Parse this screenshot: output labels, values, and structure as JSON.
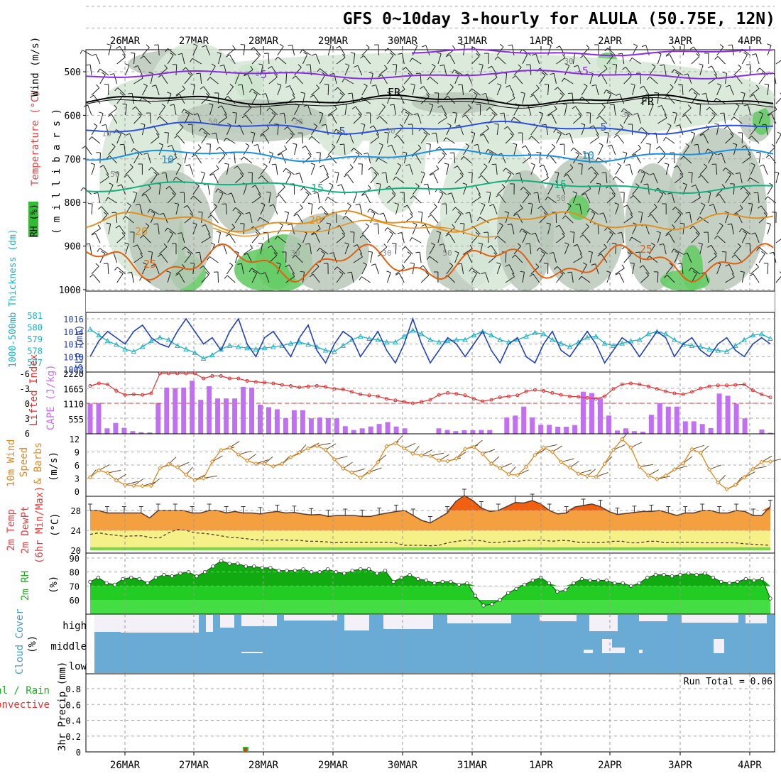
{
  "title": "GFS 0~10day 3-hourly for ALULA (50.75E, 12N)",
  "date_labels": [
    "26MAR",
    "27MAR",
    "28MAR",
    "29MAR",
    "30MAR",
    "31MAR",
    "1APR",
    "2APR",
    "3APR",
    "4APR"
  ],
  "colors": {
    "temp_minus5": "#8a2be2",
    "temp_freezing": "#000000",
    "temp_5": "#2a50e0",
    "temp_10": "#1a90e0",
    "temp_15": "#10b080",
    "temp_20": "#e09020",
    "temp_25": "#e06010",
    "slp": "#2040c0",
    "thickness": "#20b0c0",
    "lifted_index": "#e03030",
    "cape": "#c070f0",
    "wind_speed": "#e08820",
    "temp_fill": "#f4a040",
    "temp_warm_fill": "#f06010",
    "dewpoint_fill": "#f6f088",
    "rh_fill": "#22cc22",
    "cloud": "#6aabd6",
    "cloud_gap": "#f4f0f8",
    "precip_total": "#22cc22",
    "precip_convective": "#e03030"
  },
  "panels": {
    "upper": {
      "left_labels": {
        "rh": "RH (%)",
        "temperature": "Temperature (°C)",
        "wind": "Wind (m/s)",
        "units": "( m i l l i b a r s )"
      },
      "y_ticks": [
        "500",
        "600",
        "700",
        "800",
        "900",
        "1000"
      ],
      "contour_labels": [
        "-5",
        "-5",
        "FR",
        "FR",
        "5",
        "5",
        "10",
        "10",
        "15",
        "15",
        "20",
        "20",
        "25",
        "25",
        "10",
        "30",
        "50",
        "30",
        "30",
        "50",
        "50",
        "50",
        "30",
        "30",
        "30"
      ]
    },
    "slp": {
      "left_labels": {
        "thickness": "1000-500mb Thickness (dm)",
        "slp": "SLP (mb)"
      },
      "thick_ticks": [
        "581",
        "580",
        "579",
        "578",
        "577"
      ],
      "slp_ticks": [
        "1016",
        "1014",
        "1012",
        "1010",
        "1008"
      ]
    },
    "cape": {
      "left_labels": {
        "li": "Lifted Index",
        "cape": "CAPE (J/kg)"
      },
      "li_ticks": [
        "-6",
        "-3",
        "0",
        "3",
        "6"
      ],
      "cape_ticks": [
        "2220",
        "1665",
        "1110",
        "555"
      ]
    },
    "wind10": {
      "left_labels": {
        "a": "10m Wind",
        "b": "Speed",
        "c": "& Barbs",
        "d": "(m/s)"
      },
      "ticks": [
        "12",
        "9",
        "6",
        "3",
        "0"
      ]
    },
    "temp2m": {
      "left_labels": {
        "a": "2m Temp",
        "b": "2m DewPt",
        "c": "(6hr Min/Max)",
        "d": "(°C)"
      },
      "ticks": [
        "28",
        "24",
        "20"
      ]
    },
    "rh2m": {
      "left_labels": {
        "a": "2m RH",
        "b": "(%)"
      },
      "ticks": [
        "90",
        "80",
        "70",
        "60"
      ]
    },
    "cloud": {
      "left_labels": {
        "a": "Cloud Cover",
        "b": "(%)"
      },
      "ticks": [
        "high",
        "middle",
        "low"
      ]
    },
    "precip": {
      "left_labels": {
        "a": "Total / Rain",
        "b": "Convective",
        "c": "3hr Precip (mm)"
      },
      "ticks": [
        "0.8",
        "0.6",
        "0.4",
        "0.2",
        "0"
      ],
      "run_total": "Run Total = 0.06"
    }
  },
  "chart_data": [
    {
      "type": "line",
      "name": "1000-500mb thickness & SLP",
      "x_step_hours": 3,
      "series": [
        {
          "name": "SLP (mb)",
          "values": [
            1010,
            1012.5,
            1014,
            1013,
            1012,
            1014,
            1015,
            1013,
            1012,
            1011.5,
            1014,
            1016,
            1014,
            1012,
            1013,
            1011,
            1014,
            1016,
            1012,
            1010,
            1013,
            1014,
            1012,
            1010,
            1013,
            1015,
            1011,
            1009,
            1012,
            1014,
            1013,
            1010,
            1012,
            1014,
            1011,
            1009,
            1012,
            1016,
            1012,
            1009,
            1011,
            1013,
            1012,
            1010,
            1012,
            1014,
            1011,
            1009,
            1012,
            1013,
            1010,
            1009,
            1012,
            1014,
            1011,
            1010,
            1012,
            1014,
            1012,
            1009,
            1011,
            1013,
            1012,
            1010,
            1012,
            1014,
            1013,
            1010,
            1012,
            1013,
            1011,
            1010,
            1012,
            1013,
            1011,
            1010,
            1012,
            1013,
            1012
          ]
        },
        {
          "name": "Thickness (dm)",
          "values": [
            579.8,
            579.3,
            578.8,
            578.5,
            578.1,
            577.9,
            578.3,
            578.8,
            579.1,
            578.9,
            578.4,
            578.1,
            577.8,
            577.3,
            577.6,
            578.1,
            578.4,
            578.3,
            578.2,
            578.1,
            578.2,
            578.3,
            578.4,
            578.6,
            578.7,
            578.5,
            578.3,
            578.0,
            577.9,
            578.4,
            578.9,
            579.2,
            579.0,
            578.9,
            578.7,
            578.7,
            579.2,
            579.7,
            579.4,
            578.9,
            578.7,
            578.8,
            578.9,
            578.9,
            579.3,
            579.6,
            579.3,
            578.9,
            578.7,
            578.9,
            579.2,
            579.5,
            579.4,
            578.9,
            578.6,
            578.3,
            578.7,
            579.1,
            579.2,
            578.6,
            578.4,
            578.6,
            578.8,
            578.9,
            579.4,
            579.6,
            579.4,
            578.9,
            578.5,
            578.4,
            578.3,
            578.1,
            578.0,
            577.9,
            578.4,
            578.9,
            579.3,
            579.4,
            579.0
          ]
        }
      ]
    },
    {
      "type": "bar",
      "name": "CAPE (J/kg)",
      "values": [
        1110,
        1110,
        200,
        400,
        220,
        100,
        60,
        50,
        1110,
        1700,
        1680,
        1700,
        1950,
        1250,
        1750,
        1300,
        1300,
        1300,
        1730,
        1700,
        1070,
        980,
        900,
        580,
        870,
        870,
        570,
        600,
        580,
        570,
        280,
        140,
        200,
        270,
        360,
        430,
        270,
        200,
        0,
        0,
        0,
        200,
        140,
        100,
        130,
        130,
        140,
        140,
        0,
        600,
        670,
        1000,
        600,
        330,
        330,
        260,
        260,
        320,
        1550,
        1500,
        1310,
        670,
        120,
        200,
        100,
        80,
        700,
        1130,
        1000,
        1000,
        460,
        460,
        360,
        210,
        1480,
        1400,
        1110,
        570,
        0,
        160,
        40
      ]
    },
    {
      "type": "line",
      "name": "Lifted Index",
      "values": [
        -3.5,
        -4,
        -3.8,
        -2.5,
        -1.7,
        -1.8,
        -1.7,
        -2,
        -6,
        -6,
        -6,
        -6,
        -6,
        -5,
        -5.5,
        -5.5,
        -5,
        -5,
        -4.5,
        -4.3,
        -4.2,
        -4,
        -3.7,
        -3.5,
        -3.2,
        -3.4,
        -3.5,
        -3.3,
        -2.9,
        -2.8,
        -2.3,
        -1.8,
        -1.6,
        -1.4,
        -0.9,
        -0.6,
        -0.3,
        0,
        -0.3,
        -0.7,
        -1.7,
        -2.1,
        -1.9,
        -1.6,
        -0.9,
        -0.4,
        -0.7,
        -1.2,
        -1.4,
        -1.6,
        -2.4,
        -2.7,
        -2.5,
        -2.1,
        -1.7,
        -1.4,
        -1.3,
        -1.1,
        -0.9,
        -1.4,
        -2.9,
        -3.8,
        -4,
        -3.8,
        -3.4,
        -2.9,
        -2.4,
        -2.0,
        -1.8,
        -2.3,
        -3.0,
        -3.4,
        -3.6,
        -3.6,
        -3.7,
        -3.8,
        -2.6,
        -1.8,
        -1.2
      ]
    },
    {
      "type": "line",
      "name": "10m Wind Speed (m/s)",
      "values": [
        3.2,
        4.8,
        4.2,
        2.5,
        1.5,
        1.3,
        1.2,
        1.3,
        5.3,
        6.2,
        5.5,
        3.8,
        2.6,
        3,
        6.8,
        9.4,
        10,
        8.4,
        7,
        6.3,
        6.3,
        5.7,
        6.3,
        7.8,
        8.9,
        9.8,
        10.4,
        9.5,
        7.3,
        5.2,
        4.3,
        3.1,
        4.4,
        6.7,
        10.3,
        11,
        9.8,
        8.6,
        8.2,
        8.1,
        7,
        6.9,
        7.5,
        9.7,
        10.1,
        8.6,
        6.3,
        5.3,
        3.9,
        3.7,
        5.6,
        8.3,
        10,
        9,
        6.7,
        5.4,
        4,
        3.5,
        3.3,
        6.3,
        9.5,
        11.9,
        10,
        5.6,
        3.6,
        2.8,
        3.6,
        5,
        6.4,
        9.6,
        8.8,
        5,
        2,
        0.5,
        1.5,
        3.2,
        5.1,
        6.7,
        6.8
      ]
    },
    {
      "type": "area",
      "name": "2m Temp / DewPt (°C)",
      "series": [
        {
          "name": "2m Temp",
          "values": [
            28,
            28,
            27.5,
            27.5,
            27.5,
            27.5,
            27.5,
            26.5,
            28,
            28,
            28,
            28,
            27.5,
            27.5,
            28,
            28,
            27.5,
            27.8,
            27.5,
            27.5,
            27.3,
            27.6,
            27.8,
            27.5,
            27.6,
            27.3,
            27.1,
            27.2,
            26.8,
            27,
            27,
            27,
            26.8,
            26.8,
            27.2,
            27.5,
            27.8,
            28,
            27,
            26,
            25.5,
            26.5,
            27.5,
            29.8,
            31,
            30,
            28.5,
            27.8,
            28,
            28.8,
            29.6,
            29.5,
            30,
            29.3,
            28,
            27.3,
            27.5,
            28.7,
            29,
            29.3,
            28.8,
            27.8,
            27.2,
            27.4,
            27.6,
            27.8,
            27.8,
            28,
            27.5,
            27,
            27.5,
            27.5,
            28,
            28,
            27.5,
            27.5,
            28,
            27.8,
            27,
            27,
            28.8
          ]
        },
        {
          "name": "2m DewPt",
          "values": [
            23.2,
            23.5,
            23.2,
            23,
            22.8,
            22.9,
            22.9,
            22.5,
            22.5,
            23.5,
            24.2,
            24,
            23.5,
            23.4,
            23.2,
            22.9,
            22.6,
            22.5,
            22.3,
            22.1,
            22,
            22,
            22.1,
            22,
            22,
            21.8,
            21.8,
            21.7,
            21.5,
            21.6,
            21.6,
            21.6,
            21.6,
            21.6,
            21.6,
            21.5,
            21,
            21,
            21,
            20.9,
            21,
            21.5,
            21.8,
            22,
            22,
            21.9,
            21.5,
            21.6,
            21.8,
            21.8,
            22,
            22,
            22,
            21.8,
            22,
            21.9,
            21.6,
            21.6,
            21.5,
            21.6,
            21.8,
            21.8,
            21.5,
            21.5,
            21.8,
            21.8,
            21.5,
            21.6,
            21.6,
            21.6,
            21.5,
            21.5,
            21.5,
            21.5,
            21.5,
            21.3,
            21.2,
            21.1,
            21
          ]
        }
      ]
    },
    {
      "type": "area",
      "name": "2m RH (%)",
      "values": [
        73,
        76,
        72,
        71,
        75,
        76,
        75,
        72,
        76,
        78,
        77,
        79,
        80,
        77,
        80,
        84,
        88,
        86,
        86,
        84,
        84,
        83,
        83,
        81,
        81,
        81,
        82,
        80,
        80,
        82,
        80,
        79,
        81,
        82,
        82,
        79,
        81,
        73,
        76,
        78,
        75,
        74,
        72,
        73,
        73,
        71,
        72,
        63,
        56,
        57,
        60,
        65,
        68,
        71,
        74,
        76,
        72,
        66,
        67,
        72,
        75,
        74,
        74,
        74,
        72,
        72,
        70,
        72,
        76,
        78,
        78,
        77,
        78,
        79,
        78,
        79,
        76,
        73,
        72,
        73,
        75,
        74,
        75,
        61
      ]
    },
    {
      "type": "bar",
      "name": "3hr Precip (mm)",
      "categories": [
        "28MAR (approx.)"
      ],
      "series": [
        {
          "name": "Total / Rain",
          "values": [
            0.06
          ]
        },
        {
          "name": "Convective",
          "values": [
            0.06
          ]
        }
      ]
    }
  ]
}
